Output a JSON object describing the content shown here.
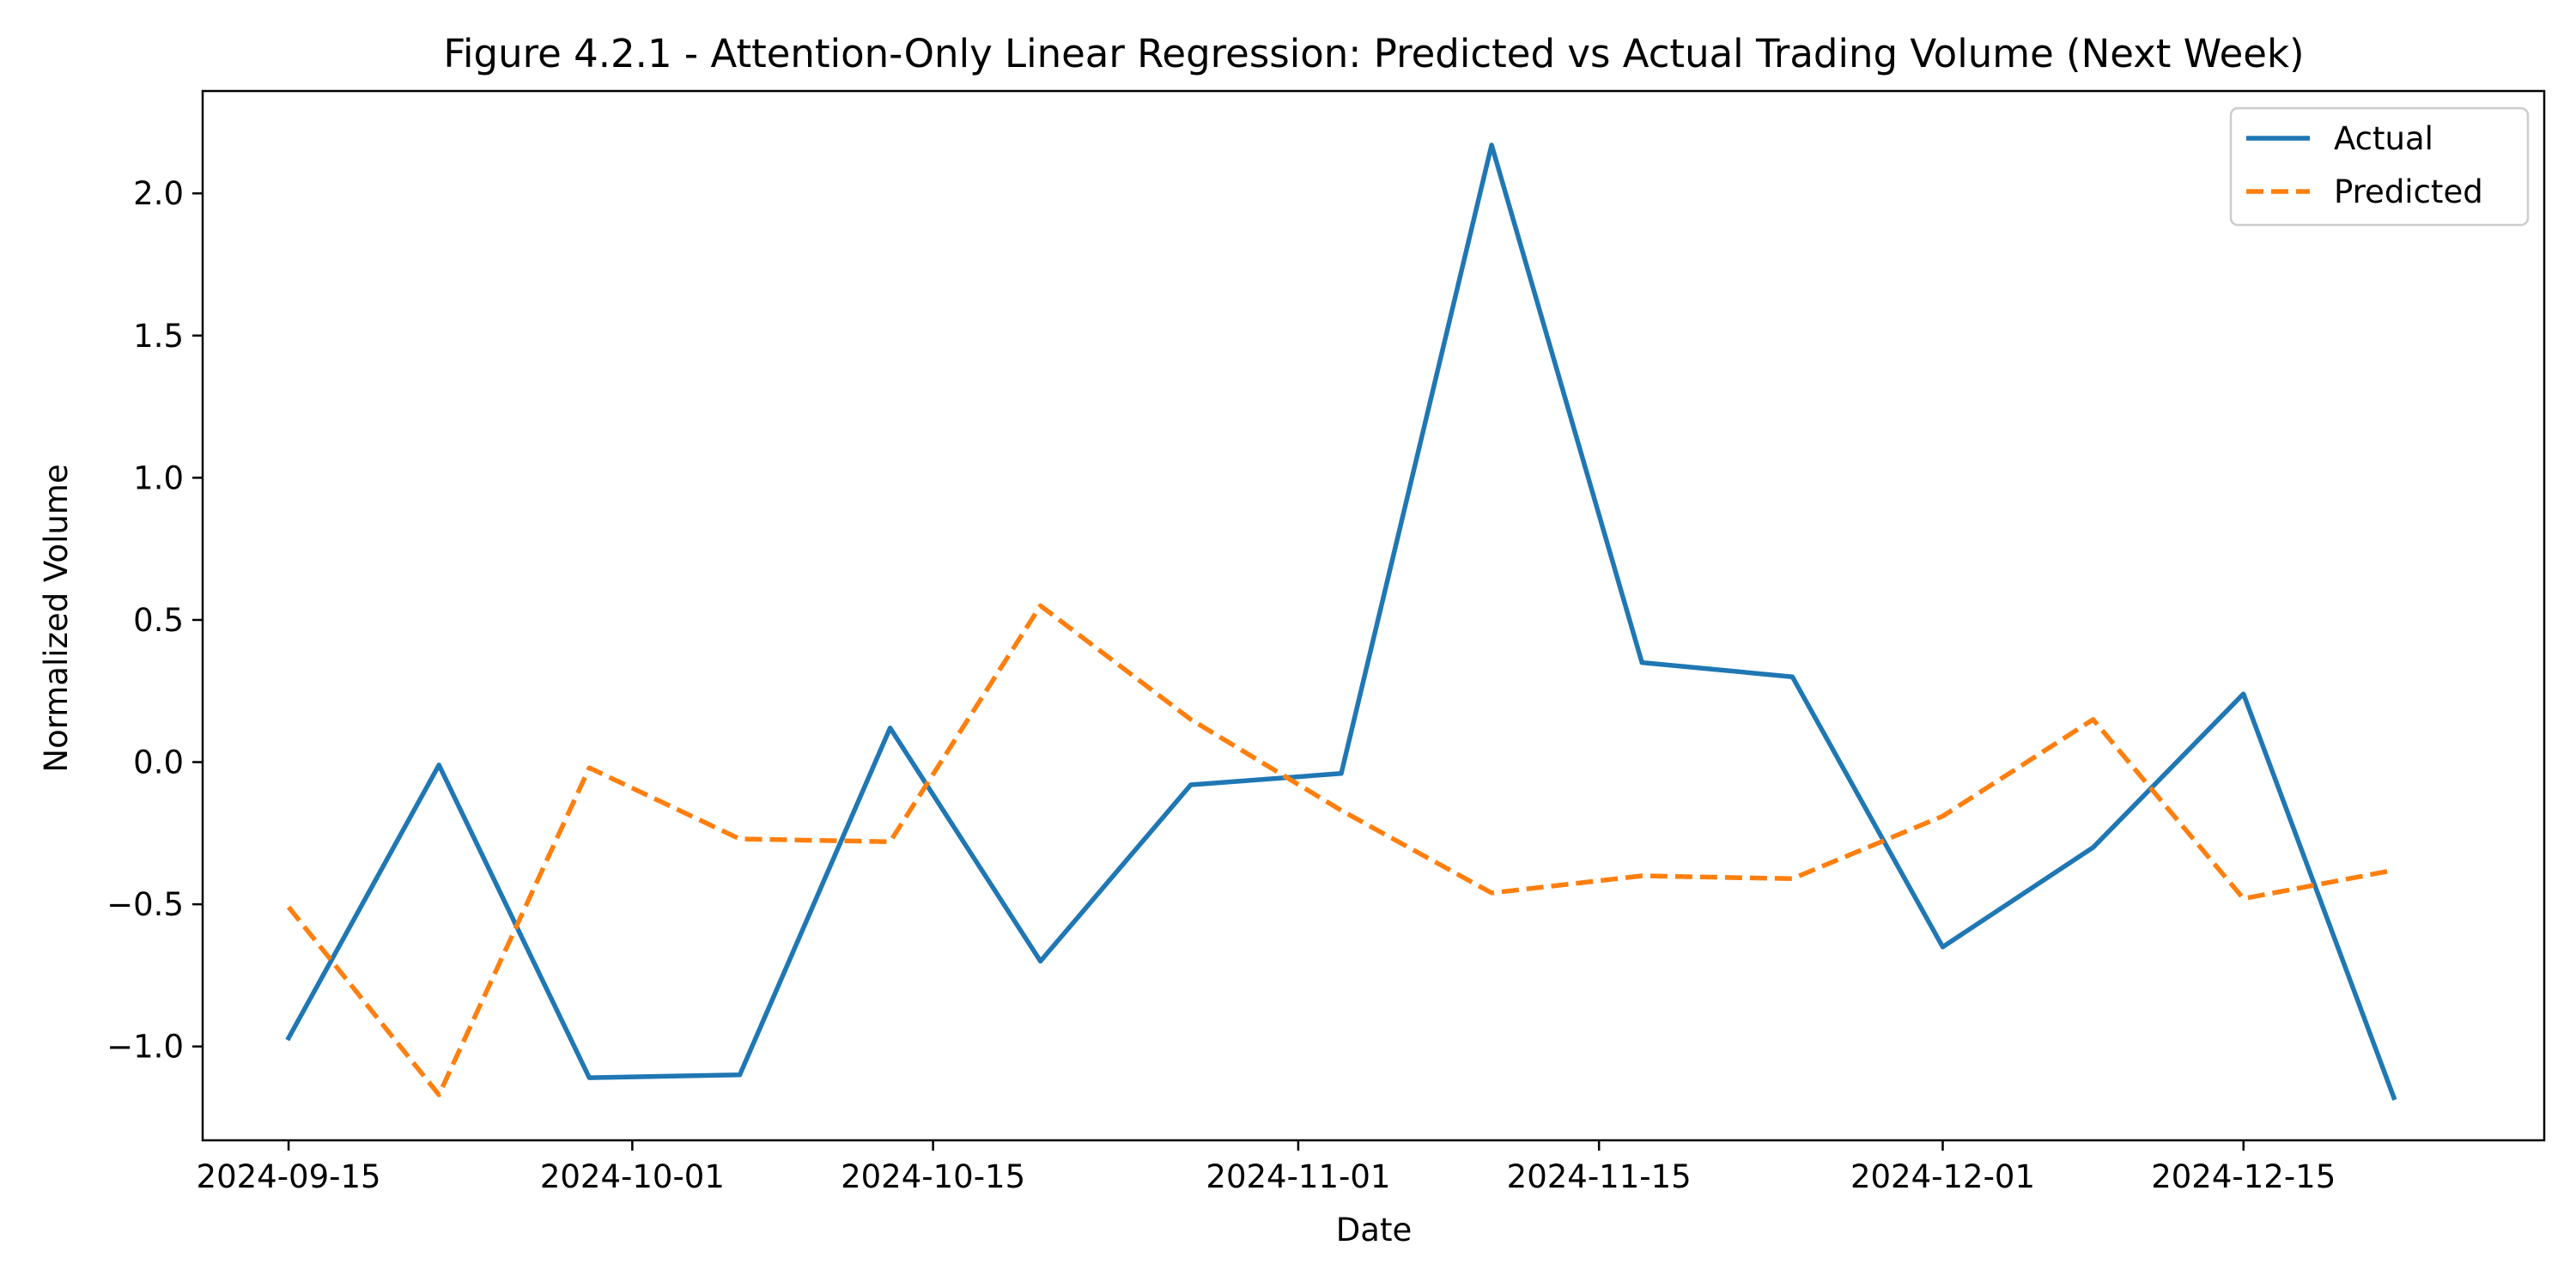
{
  "chart_data": {
    "type": "line",
    "title": "Figure 4.2.1 - Attention-Only Linear Regression: Predicted vs Actual Trading Volume (Next Week)",
    "xlabel": "Date",
    "ylabel": "Normalized Volume",
    "x": [
      "2024-09-15",
      "2024-09-22",
      "2024-09-29",
      "2024-10-06",
      "2024-10-13",
      "2024-10-20",
      "2024-10-27",
      "2024-11-03",
      "2024-11-10",
      "2024-11-17",
      "2024-11-24",
      "2024-12-01",
      "2024-12-08",
      "2024-12-15",
      "2024-12-22"
    ],
    "xlim": [
      "2024-09-11",
      "2024-12-29"
    ],
    "ylim": [
      -1.33,
      2.36
    ],
    "xticks": [
      "2024-09-15",
      "2024-10-01",
      "2024-10-15",
      "2024-11-01",
      "2024-11-15",
      "2024-12-01",
      "2024-12-15"
    ],
    "yticks": [
      -1.0,
      -0.5,
      0.0,
      0.5,
      1.0,
      1.5,
      2.0
    ],
    "ytick_labels": [
      "−1.0",
      "−0.5",
      "0.0",
      "0.5",
      "1.0",
      "1.5",
      "2.0"
    ],
    "grid": false,
    "legend_position": "top-right",
    "series": [
      {
        "name": "Actual",
        "color": "#1f77b4",
        "style": "solid",
        "values": [
          -0.97,
          -0.01,
          -1.11,
          -1.1,
          0.12,
          -0.7,
          -0.08,
          -0.04,
          2.17,
          0.35,
          0.3,
          -0.65,
          -0.3,
          0.24,
          -1.18
        ]
      },
      {
        "name": "Predicted",
        "color": "#ff7f0e",
        "style": "dashed",
        "values": [
          -0.51,
          -1.17,
          -0.02,
          -0.27,
          -0.28,
          0.55,
          0.15,
          -0.17,
          -0.46,
          -0.4,
          -0.41,
          -0.19,
          0.15,
          -0.48,
          -0.38
        ]
      }
    ]
  }
}
